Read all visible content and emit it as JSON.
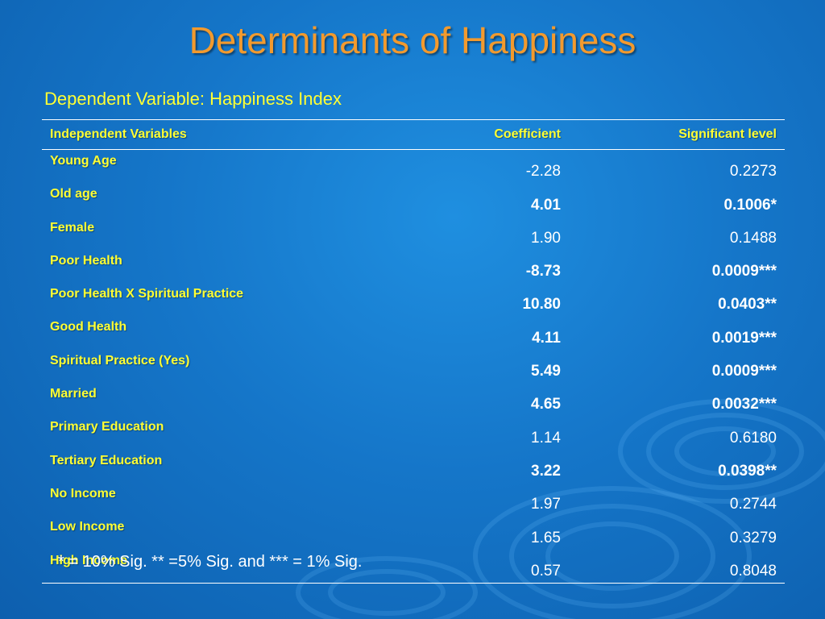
{
  "slide": {
    "title": "Determinants of Happiness",
    "subtitle": "Dependent Variable: Happiness Index",
    "footnote": "* = 10% Sig. ** =5% Sig. and *** = 1% Sig."
  },
  "table": {
    "headers": {
      "variable": "Independent Variables",
      "coefficient": "Coefficient",
      "significance": "Significant  level"
    },
    "rows": [
      {
        "variable": "Young Age",
        "coefficient": "-2.28",
        "significance": "0.2273",
        "bold": false
      },
      {
        "variable": "Old age",
        "coefficient": "4.01",
        "significance": "0.1006*",
        "bold": true
      },
      {
        "variable": "Female",
        "coefficient": "1.90",
        "significance": "0.1488",
        "bold": false
      },
      {
        "variable": "Poor Health",
        "coefficient": "-8.73",
        "significance": "0.0009***",
        "bold": true
      },
      {
        "variable": "Poor Health X Spiritual Practice",
        "coefficient": "10.80",
        "significance": "0.0403**",
        "bold": true
      },
      {
        "variable": "Good Health",
        "coefficient": "4.11",
        "significance": "0.0019***",
        "bold": true
      },
      {
        "variable": "Spiritual Practice (Yes)",
        "coefficient": "5.49",
        "significance": "0.0009***",
        "bold": true
      },
      {
        "variable": "Married",
        "coefficient": "4.65",
        "significance": "0.0032***",
        "bold": true
      },
      {
        "variable": "Primary Education",
        "coefficient": "1.14",
        "significance": "0.6180",
        "bold": false
      },
      {
        "variable": "Tertiary Education",
        "coefficient": "3.22",
        "significance": "0.0398**",
        "bold": true
      },
      {
        "variable": "No Income",
        "coefficient": "1.97",
        "significance": "0.2744",
        "bold": false
      },
      {
        "variable": "Low Income",
        "coefficient": "1.65",
        "significance": "0.3279",
        "bold": false
      },
      {
        "variable": "High Income",
        "coefficient": "0.57",
        "significance": "0.8048",
        "bold": false
      }
    ]
  },
  "colors": {
    "title": "#f29a2e",
    "label_yellow": "#ffff33",
    "value_white": "#ffffff",
    "background": "#1576c9"
  }
}
